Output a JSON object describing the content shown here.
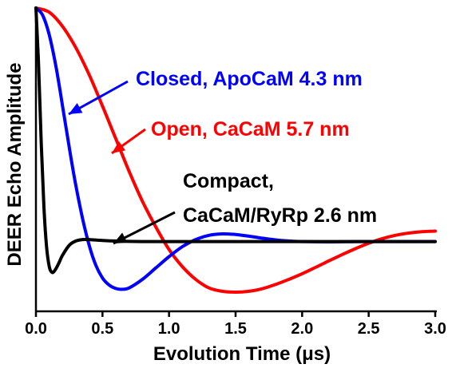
{
  "chart_data": {
    "type": "line",
    "title": "",
    "xlabel": "Evolution Time (μs)",
    "ylabel": "DEER Echo Amplitude",
    "xlim": [
      0,
      3.0
    ],
    "ylim": [
      0,
      1
    ],
    "x_ticks": [
      0.0,
      0.5,
      1.0,
      1.5,
      2.0,
      2.5,
      3.0
    ],
    "x_tick_labels": [
      "0.0",
      "0.5",
      "1.0",
      "1.5",
      "2.0",
      "2.5",
      "3.0"
    ],
    "y_tick_labels_shown": false,
    "grid": false,
    "legend": "none",
    "series": [
      {
        "color": "#ff0000",
        "label_lines": [
          "Open, CaCaM 5.7 nm"
        ],
        "x": [
          0,
          0.1,
          0.2,
          0.3,
          0.4,
          0.5,
          0.6,
          0.7,
          0.8,
          0.9,
          1.0,
          1.1,
          1.2,
          1.3,
          1.4,
          1.5,
          1.6,
          1.7,
          1.8,
          1.9,
          2.0,
          2.1,
          2.2,
          2.3,
          2.4,
          2.5,
          2.6,
          2.7,
          2.8,
          2.9,
          3.0
        ],
        "y": [
          1.0,
          0.985,
          0.935,
          0.86,
          0.765,
          0.655,
          0.54,
          0.425,
          0.32,
          0.23,
          0.15,
          0.09,
          0.045,
          0.015,
          0.003,
          0.0,
          0.003,
          0.012,
          0.027,
          0.045,
          0.065,
          0.087,
          0.11,
          0.132,
          0.153,
          0.172,
          0.188,
          0.2,
          0.208,
          0.213,
          0.215
        ]
      },
      {
        "color": "#0000ff",
        "label_lines": [
          "Closed, ApoCaM 4.3 nm"
        ],
        "x": [
          0,
          0.05,
          0.1,
          0.15,
          0.2,
          0.25,
          0.3,
          0.35,
          0.4,
          0.45,
          0.5,
          0.55,
          0.6,
          0.65,
          0.7,
          0.8,
          0.9,
          1.0,
          1.1,
          1.2,
          1.3,
          1.4,
          1.5,
          1.6,
          1.7,
          1.8,
          1.9,
          2.0,
          2.2,
          2.4,
          2.6,
          2.8,
          3.0
        ],
        "y": [
          1.0,
          0.975,
          0.905,
          0.795,
          0.655,
          0.51,
          0.375,
          0.26,
          0.165,
          0.095,
          0.05,
          0.025,
          0.013,
          0.01,
          0.015,
          0.045,
          0.085,
          0.125,
          0.16,
          0.185,
          0.2,
          0.205,
          0.203,
          0.197,
          0.19,
          0.184,
          0.18,
          0.178,
          0.177,
          0.178,
          0.178,
          0.178,
          0.178
        ]
      },
      {
        "color": "#000000",
        "label_lines": [
          "Compact,",
          "CaCaM/RyRp 2.6 nm"
        ],
        "x": [
          0,
          0.02,
          0.04,
          0.06,
          0.08,
          0.1,
          0.12,
          0.14,
          0.17,
          0.2,
          0.25,
          0.3,
          0.35,
          0.4,
          0.5,
          0.6,
          0.8,
          1.0,
          1.5,
          2.0,
          2.5,
          3.0
        ],
        "y": [
          1.0,
          0.8,
          0.52,
          0.3,
          0.16,
          0.09,
          0.07,
          0.075,
          0.1,
          0.13,
          0.165,
          0.18,
          0.185,
          0.185,
          0.182,
          0.18,
          0.178,
          0.178,
          0.178,
          0.178,
          0.178,
          0.178
        ]
      }
    ]
  }
}
